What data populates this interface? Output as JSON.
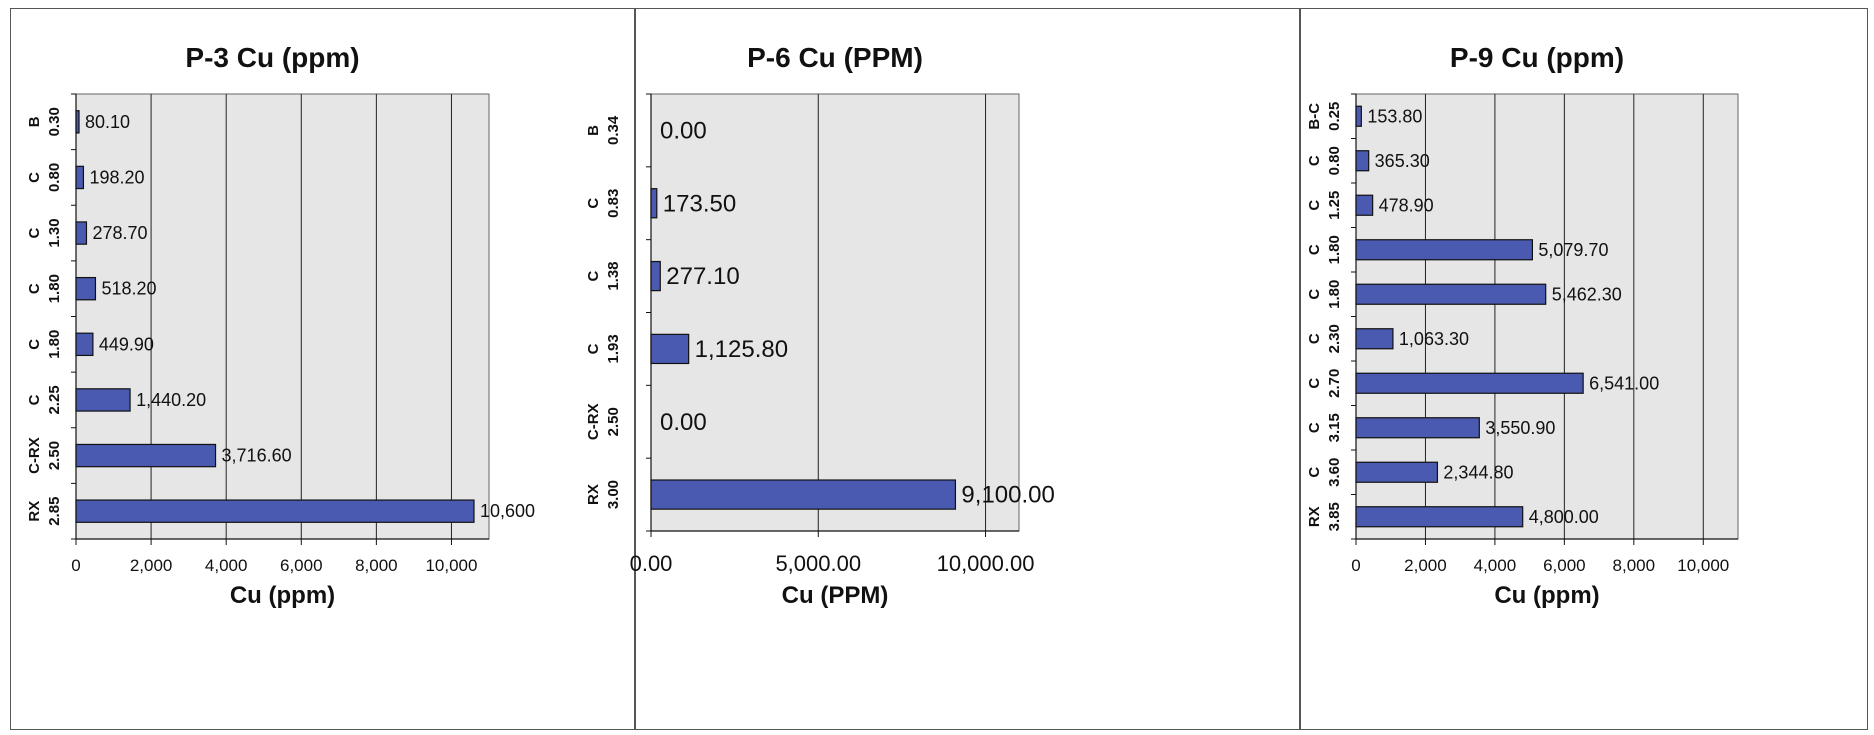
{
  "chart_data": [
    {
      "type": "bar",
      "orientation": "horizontal",
      "title": "P-3 Cu (ppm)",
      "xlabel": "Cu (ppm)",
      "xlim": [
        0,
        11000
      ],
      "x_ticks": [
        0,
        2000,
        4000,
        6000,
        8000,
        10000
      ],
      "x_tick_labels": [
        "0",
        "2,000",
        "4,000",
        "6,000",
        "8,000",
        "10,000"
      ],
      "grid": "vertical",
      "categories": [
        {
          "code": "B",
          "depth": "0.30"
        },
        {
          "code": "C",
          "depth": "0.80"
        },
        {
          "code": "C",
          "depth": "1.30"
        },
        {
          "code": "C",
          "depth": "1.80"
        },
        {
          "code": "C",
          "depth": "1.80"
        },
        {
          "code": "C",
          "depth": "2.25"
        },
        {
          "code": "C-RX",
          "depth": "2.50"
        },
        {
          "code": "RX",
          "depth": "2.85"
        }
      ],
      "values": [
        80.1,
        198.2,
        278.7,
        518.2,
        449.9,
        1440.2,
        3716.6,
        10600
      ],
      "data_labels": [
        "80.10",
        "198.20",
        "278.70",
        "518.20",
        "449.90",
        "1,440.20",
        "3,716.60",
        "10,600"
      ],
      "colors": {
        "bar": "#4a5ab0",
        "plot_bg": "#e6e6e6",
        "grid": "#222222"
      }
    },
    {
      "type": "bar",
      "orientation": "horizontal",
      "title": "P-6 Cu (PPM)",
      "xlabel": "Cu (PPM)",
      "xlim": [
        0,
        11000
      ],
      "x_ticks": [
        0,
        5000,
        10000
      ],
      "x_tick_labels": [
        "0.00",
        "5,000.00",
        "10,000.00"
      ],
      "grid": "vertical",
      "categories": [
        {
          "code": "B",
          "depth": "0.34"
        },
        {
          "code": "C",
          "depth": "0.83"
        },
        {
          "code": "C",
          "depth": "1.38"
        },
        {
          "code": "C",
          "depth": "1.93"
        },
        {
          "code": "C-RX",
          "depth": "2.50"
        },
        {
          "code": "RX",
          "depth": "3.00"
        }
      ],
      "values": [
        0,
        173.5,
        277.1,
        1125.8,
        0,
        9100
      ],
      "data_labels": [
        "0.00",
        "173.50",
        "277.10",
        "1,125.80",
        "0.00",
        "9,100.00"
      ],
      "colors": {
        "bar": "#4a5ab0",
        "plot_bg": "#e6e6e6",
        "grid": "#222222"
      }
    },
    {
      "type": "bar",
      "orientation": "horizontal",
      "title": "P-9 Cu (ppm)",
      "xlabel": "Cu (ppm)",
      "xlim": [
        0,
        11000
      ],
      "x_ticks": [
        0,
        2000,
        4000,
        6000,
        8000,
        10000
      ],
      "x_tick_labels": [
        "0",
        "2,000",
        "4,000",
        "6,000",
        "8,000",
        "10,000"
      ],
      "grid": "vertical",
      "categories": [
        {
          "code": "B-C",
          "depth": "0.25"
        },
        {
          "code": "C",
          "depth": "0.80"
        },
        {
          "code": "C",
          "depth": "1.25"
        },
        {
          "code": "C",
          "depth": "1.80"
        },
        {
          "code": "C",
          "depth": "1.80"
        },
        {
          "code": "C",
          "depth": "2.30"
        },
        {
          "code": "C",
          "depth": "2.70"
        },
        {
          "code": "C",
          "depth": "3.15"
        },
        {
          "code": "C",
          "depth": "3.60"
        },
        {
          "code": "RX",
          "depth": "3.85"
        }
      ],
      "values": [
        153.8,
        365.3,
        478.9,
        5079.7,
        5462.3,
        1063.3,
        6541.0,
        3550.9,
        2344.8,
        4800.0
      ],
      "data_labels": [
        "153.80",
        "365.30",
        "478.90",
        "5,079.70",
        "5,462.30",
        "1,063.30",
        "6,541.00",
        "3,550.90",
        "2,344.80",
        "4,800.00"
      ],
      "colors": {
        "bar": "#4a5ab0",
        "plot_bg": "#e6e6e6",
        "grid": "#222222"
      }
    }
  ]
}
